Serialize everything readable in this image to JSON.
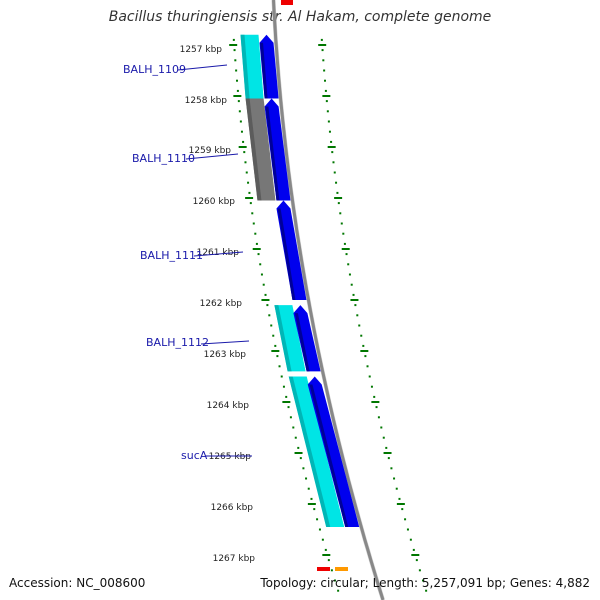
{
  "title": "Bacillus thuringiensis str. Al Hakam, complete genome",
  "footer": {
    "accession": "Accession: NC_008600",
    "summary": "Topology: circular; Length: 5,257,091 bp; Genes: 4,882"
  },
  "colors": {
    "forward_cds": "#0000ee",
    "cyan_feature": "#00e5e5",
    "gray_feature": "#777777",
    "backbone": "#888888",
    "tick": "#007700",
    "gene_label": "#1a1aaa",
    "red_marker": "#ee0000",
    "orange_marker": "#ff9900"
  },
  "scale": {
    "unit": "kbp",
    "tick_labels": [
      "1257 kbp",
      "1258 kbp",
      "1259 kbp",
      "1260 kbp",
      "1261 kbp",
      "1262 kbp",
      "1263 kbp",
      "1264 kbp",
      "1265 kbp",
      "1266 kbp",
      "1267 kbp"
    ]
  },
  "gene_labels": [
    "BALH_1109",
    "BALH_1110",
    "BALH_1111",
    "BALH_1112",
    "sucA"
  ],
  "feature_tracks": {
    "cyan_gray": [
      {
        "start_kbp": 1256.8,
        "end_kbp": 1258.05,
        "color": "cyan"
      },
      {
        "start_kbp": 1258.05,
        "end_kbp": 1260.05,
        "color": "gray"
      },
      {
        "start_kbp": 1262.1,
        "end_kbp": 1263.4,
        "color": "cyan"
      },
      {
        "start_kbp": 1263.5,
        "end_kbp": 1266.45,
        "color": "cyan"
      }
    ],
    "forward_cds": [
      {
        "start_kbp": 1256.8,
        "end_kbp": 1258.05
      },
      {
        "start_kbp": 1258.05,
        "end_kbp": 1260.05
      },
      {
        "start_kbp": 1260.05,
        "end_kbp": 1262.0
      },
      {
        "start_kbp": 1262.1,
        "end_kbp": 1263.4
      },
      {
        "start_kbp": 1263.5,
        "end_kbp": 1266.45
      }
    ]
  }
}
